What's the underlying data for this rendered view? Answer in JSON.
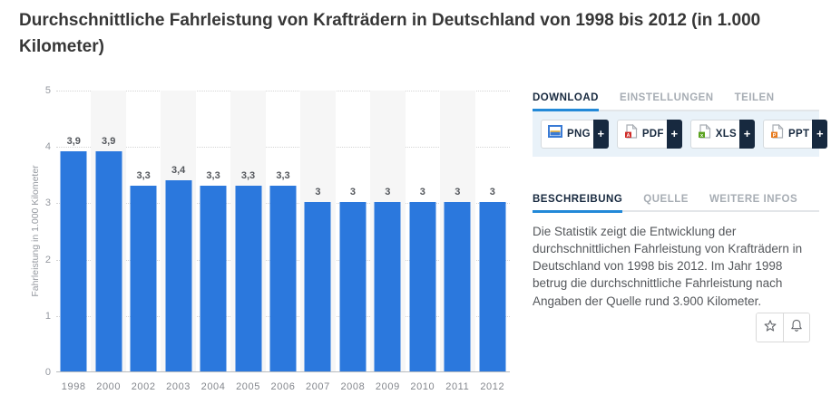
{
  "page": {
    "title": "Durchschnittliche Fahrleistung von Krafträdern in Deutschland von 1998 bis 2012 (in 1.000 Kilometer)"
  },
  "chart_data": {
    "type": "bar",
    "categories": [
      "1998",
      "2000",
      "2002",
      "2003",
      "2004",
      "2005",
      "2006",
      "2007",
      "2008",
      "2009",
      "2010",
      "2011",
      "2012"
    ],
    "values": [
      3.9,
      3.9,
      3.3,
      3.4,
      3.3,
      3.3,
      3.3,
      3,
      3,
      3,
      3,
      3,
      3
    ],
    "value_labels": [
      "3,9",
      "3,9",
      "3,3",
      "3,4",
      "3,3",
      "3,3",
      "3,3",
      "3",
      "3",
      "3",
      "3",
      "3",
      "3"
    ],
    "title": "Durchschnittliche Fahrleistung von Krafträdern in Deutschland von 1998 bis 2012 (in 1.000 Kilometer)",
    "xlabel": "",
    "ylabel": "Fahrleistung in 1.000 Kilometer",
    "ylim": [
      0,
      5
    ],
    "yticks": [
      0,
      1,
      2,
      3,
      4,
      5
    ],
    "grid": true,
    "legend": false,
    "bar_color": "#2b78dd"
  },
  "download": {
    "tabs": [
      {
        "label": "DOWNLOAD",
        "active": true
      },
      {
        "label": "EINSTELLUNGEN",
        "active": false
      },
      {
        "label": "TEILEN",
        "active": false
      }
    ],
    "buttons": [
      {
        "label": "PNG",
        "plus": "+",
        "icon": "png-image-icon"
      },
      {
        "label": "PDF",
        "plus": "+",
        "icon": "pdf-file-icon"
      },
      {
        "label": "XLS",
        "plus": "+",
        "icon": "xls-file-icon"
      },
      {
        "label": "PPT",
        "plus": "+",
        "icon": "ppt-file-icon"
      }
    ]
  },
  "info": {
    "tabs": [
      {
        "label": "BESCHREIBUNG",
        "active": true
      },
      {
        "label": "QUELLE",
        "active": false
      },
      {
        "label": "WEITERE INFOS",
        "active": false
      }
    ],
    "description": "Die Statistik zeigt die Entwicklung der durchschnittlichen Fahrleistung von Krafträdern in Deutschland von 1998 bis 2012. Im Jahr 1998 betrug die durchschnittliche Fahrleistung nach Angaben der Quelle rund 3.900 Kilometer."
  },
  "actions": {
    "favorite": "star",
    "alert": "bell"
  },
  "colors": {
    "bar": "#2b78dd",
    "accent": "#2289d8",
    "navy": "#17293f",
    "panel_background": "#e9f2f9",
    "band": "#f6f6f6"
  }
}
